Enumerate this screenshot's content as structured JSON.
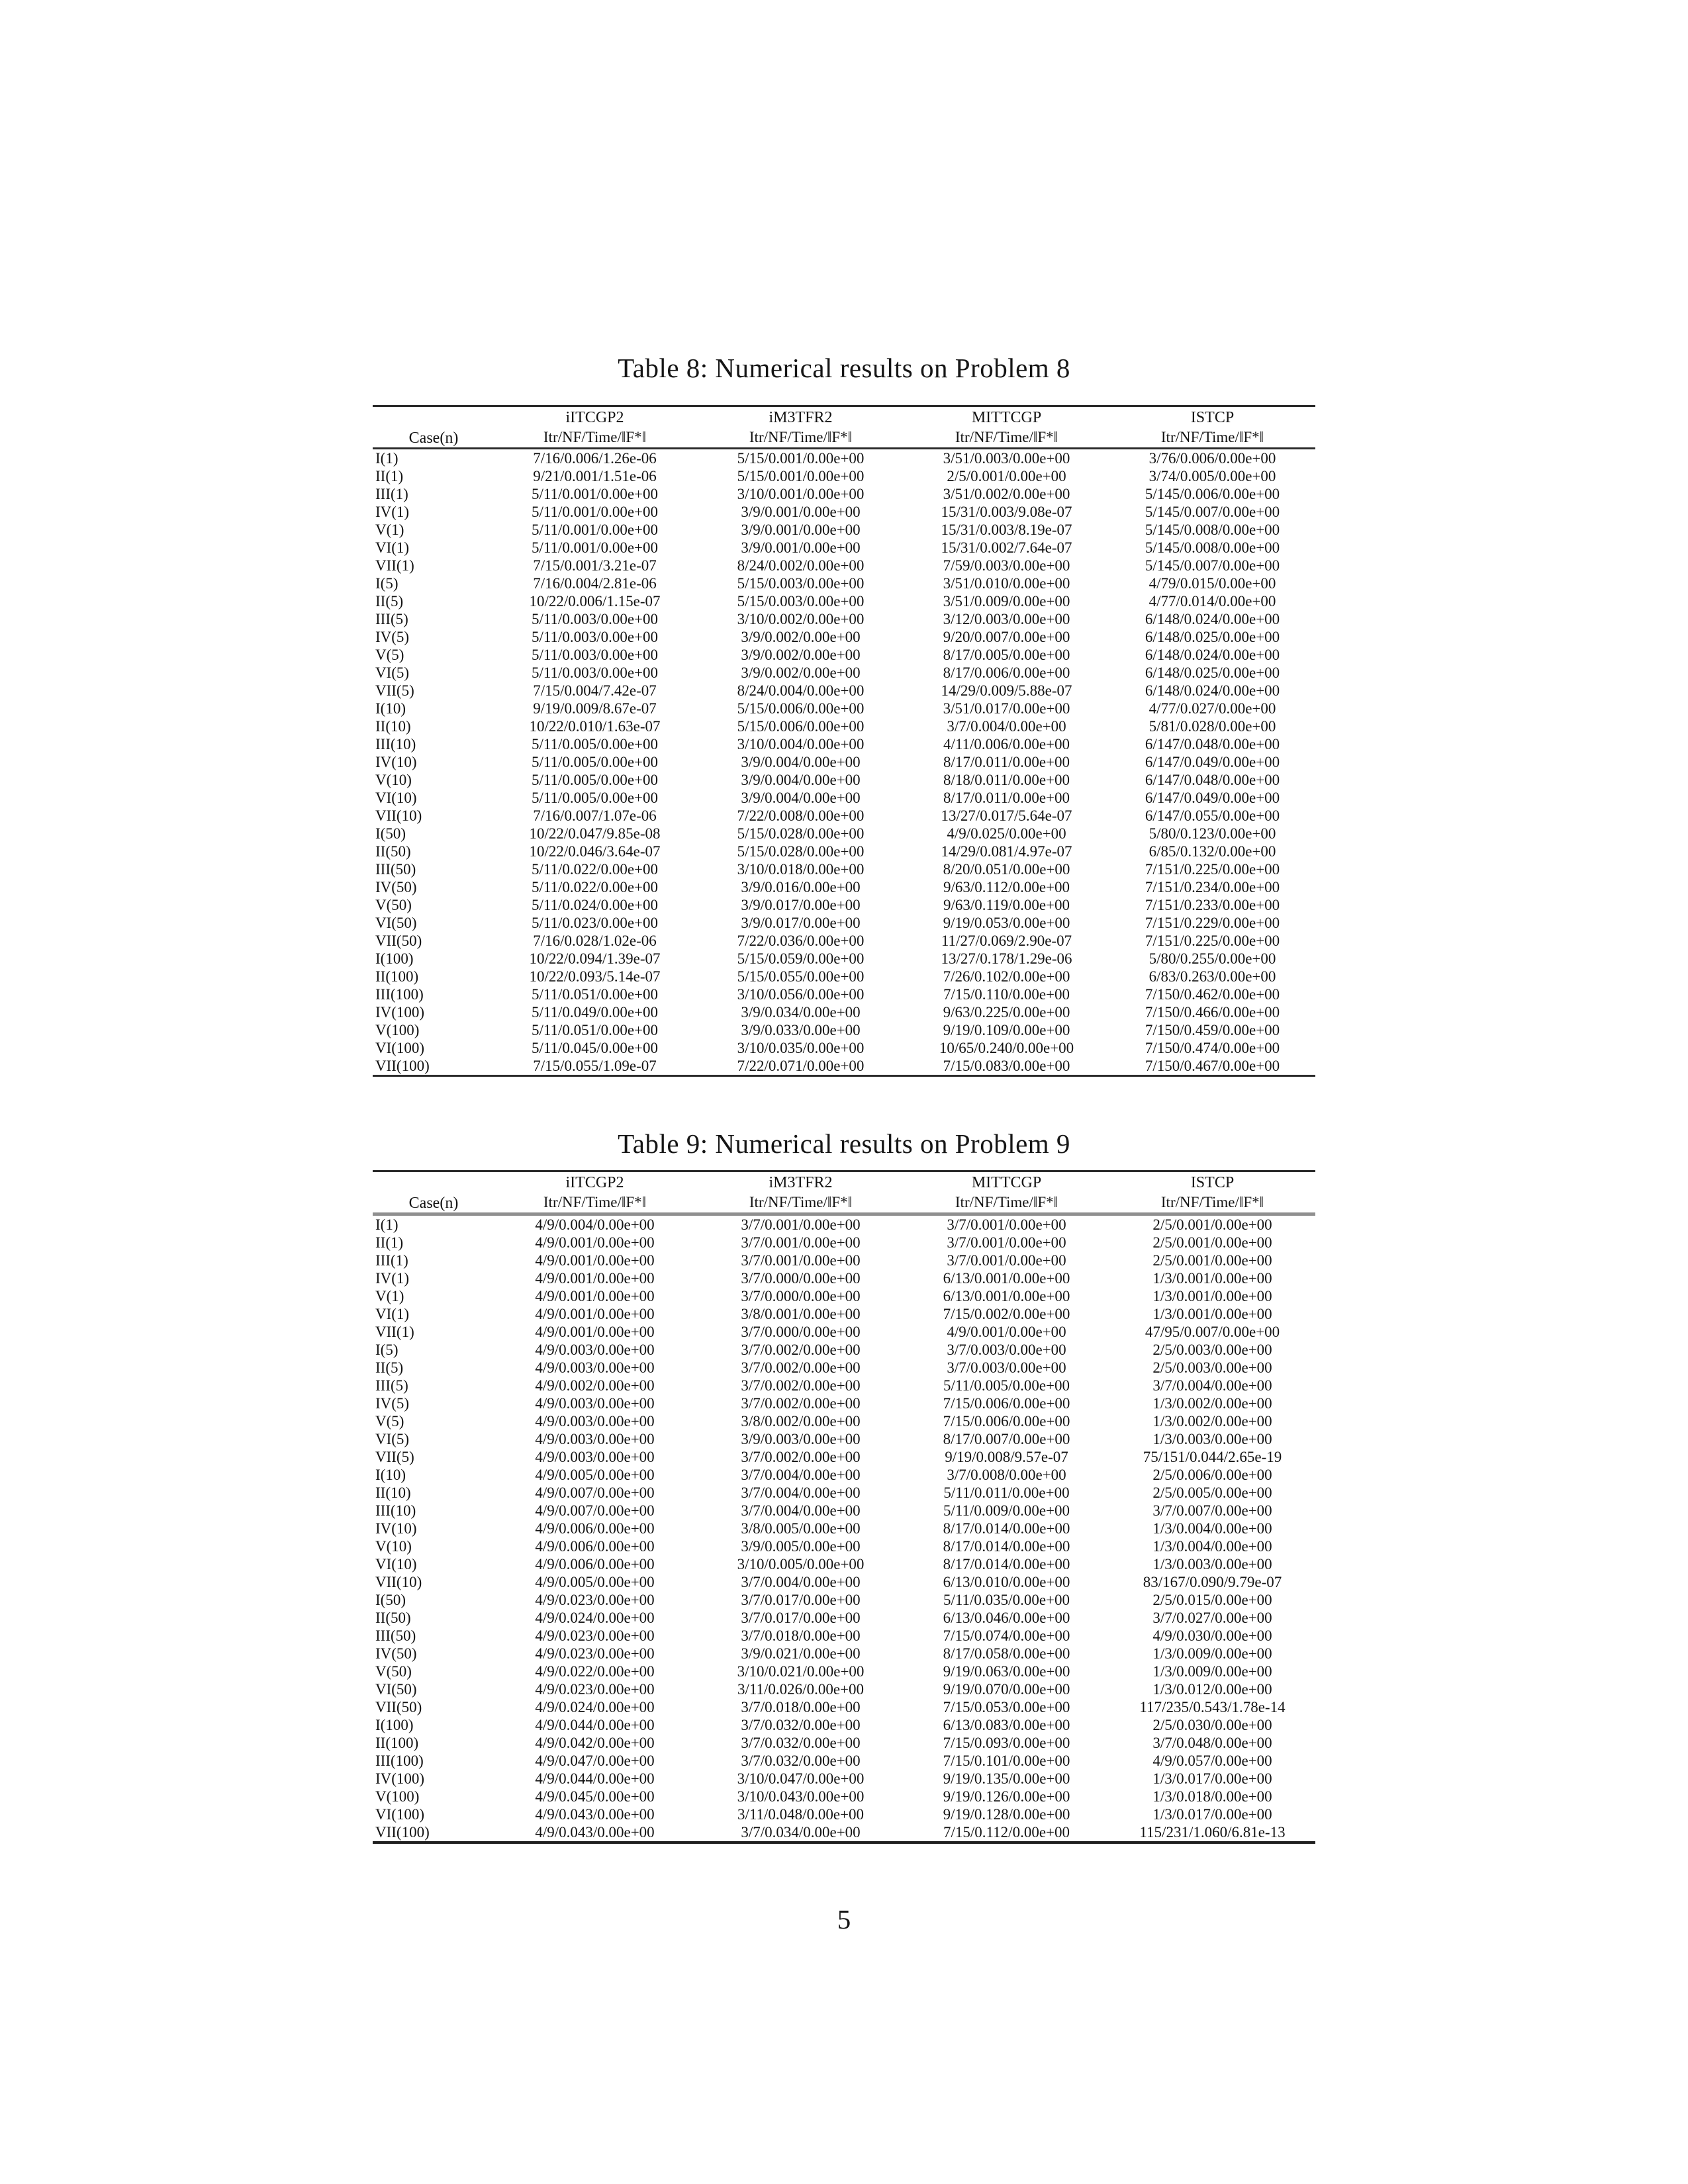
{
  "page": {
    "number": "5"
  },
  "tables": [
    {
      "title": "Table 8: Numerical results on Problem 8",
      "case_header": "Case(n)",
      "columns": [
        "iITCGP2",
        "iM3TFR2",
        "MITTCGP",
        "ISTCP"
      ],
      "metric_header": "Itr/NF/Time/‖F*‖",
      "rows": [
        [
          "I(1)",
          "7/16/0.006/1.26e-06",
          "5/15/0.001/0.00e+00",
          "3/51/0.003/0.00e+00",
          "3/76/0.006/0.00e+00"
        ],
        [
          "II(1)",
          "9/21/0.001/1.51e-06",
          "5/15/0.001/0.00e+00",
          "2/5/0.001/0.00e+00",
          "3/74/0.005/0.00e+00"
        ],
        [
          "III(1)",
          "5/11/0.001/0.00e+00",
          "3/10/0.001/0.00e+00",
          "3/51/0.002/0.00e+00",
          "5/145/0.006/0.00e+00"
        ],
        [
          "IV(1)",
          "5/11/0.001/0.00e+00",
          "3/9/0.001/0.00e+00",
          "15/31/0.003/9.08e-07",
          "5/145/0.007/0.00e+00"
        ],
        [
          "V(1)",
          "5/11/0.001/0.00e+00",
          "3/9/0.001/0.00e+00",
          "15/31/0.003/8.19e-07",
          "5/145/0.008/0.00e+00"
        ],
        [
          "VI(1)",
          "5/11/0.001/0.00e+00",
          "3/9/0.001/0.00e+00",
          "15/31/0.002/7.64e-07",
          "5/145/0.008/0.00e+00"
        ],
        [
          "VII(1)",
          "7/15/0.001/3.21e-07",
          "8/24/0.002/0.00e+00",
          "7/59/0.003/0.00e+00",
          "5/145/0.007/0.00e+00"
        ],
        [
          "I(5)",
          "7/16/0.004/2.81e-06",
          "5/15/0.003/0.00e+00",
          "3/51/0.010/0.00e+00",
          "4/79/0.015/0.00e+00"
        ],
        [
          "II(5)",
          "10/22/0.006/1.15e-07",
          "5/15/0.003/0.00e+00",
          "3/51/0.009/0.00e+00",
          "4/77/0.014/0.00e+00"
        ],
        [
          "III(5)",
          "5/11/0.003/0.00e+00",
          "3/10/0.002/0.00e+00",
          "3/12/0.003/0.00e+00",
          "6/148/0.024/0.00e+00"
        ],
        [
          "IV(5)",
          "5/11/0.003/0.00e+00",
          "3/9/0.002/0.00e+00",
          "9/20/0.007/0.00e+00",
          "6/148/0.025/0.00e+00"
        ],
        [
          "V(5)",
          "5/11/0.003/0.00e+00",
          "3/9/0.002/0.00e+00",
          "8/17/0.005/0.00e+00",
          "6/148/0.024/0.00e+00"
        ],
        [
          "VI(5)",
          "5/11/0.003/0.00e+00",
          "3/9/0.002/0.00e+00",
          "8/17/0.006/0.00e+00",
          "6/148/0.025/0.00e+00"
        ],
        [
          "VII(5)",
          "7/15/0.004/7.42e-07",
          "8/24/0.004/0.00e+00",
          "14/29/0.009/5.88e-07",
          "6/148/0.024/0.00e+00"
        ],
        [
          "I(10)",
          "9/19/0.009/8.67e-07",
          "5/15/0.006/0.00e+00",
          "3/51/0.017/0.00e+00",
          "4/77/0.027/0.00e+00"
        ],
        [
          "II(10)",
          "10/22/0.010/1.63e-07",
          "5/15/0.006/0.00e+00",
          "3/7/0.004/0.00e+00",
          "5/81/0.028/0.00e+00"
        ],
        [
          "III(10)",
          "5/11/0.005/0.00e+00",
          "3/10/0.004/0.00e+00",
          "4/11/0.006/0.00e+00",
          "6/147/0.048/0.00e+00"
        ],
        [
          "IV(10)",
          "5/11/0.005/0.00e+00",
          "3/9/0.004/0.00e+00",
          "8/17/0.011/0.00e+00",
          "6/147/0.049/0.00e+00"
        ],
        [
          "V(10)",
          "5/11/0.005/0.00e+00",
          "3/9/0.004/0.00e+00",
          "8/18/0.011/0.00e+00",
          "6/147/0.048/0.00e+00"
        ],
        [
          "VI(10)",
          "5/11/0.005/0.00e+00",
          "3/9/0.004/0.00e+00",
          "8/17/0.011/0.00e+00",
          "6/147/0.049/0.00e+00"
        ],
        [
          "VII(10)",
          "7/16/0.007/1.07e-06",
          "7/22/0.008/0.00e+00",
          "13/27/0.017/5.64e-07",
          "6/147/0.055/0.00e+00"
        ],
        [
          "I(50)",
          "10/22/0.047/9.85e-08",
          "5/15/0.028/0.00e+00",
          "4/9/0.025/0.00e+00",
          "5/80/0.123/0.00e+00"
        ],
        [
          "II(50)",
          "10/22/0.046/3.64e-07",
          "5/15/0.028/0.00e+00",
          "14/29/0.081/4.97e-07",
          "6/85/0.132/0.00e+00"
        ],
        [
          "III(50)",
          "5/11/0.022/0.00e+00",
          "3/10/0.018/0.00e+00",
          "8/20/0.051/0.00e+00",
          "7/151/0.225/0.00e+00"
        ],
        [
          "IV(50)",
          "5/11/0.022/0.00e+00",
          "3/9/0.016/0.00e+00",
          "9/63/0.112/0.00e+00",
          "7/151/0.234/0.00e+00"
        ],
        [
          "V(50)",
          "5/11/0.024/0.00e+00",
          "3/9/0.017/0.00e+00",
          "9/63/0.119/0.00e+00",
          "7/151/0.233/0.00e+00"
        ],
        [
          "VI(50)",
          "5/11/0.023/0.00e+00",
          "3/9/0.017/0.00e+00",
          "9/19/0.053/0.00e+00",
          "7/151/0.229/0.00e+00"
        ],
        [
          "VII(50)",
          "7/16/0.028/1.02e-06",
          "7/22/0.036/0.00e+00",
          "11/27/0.069/2.90e-07",
          "7/151/0.225/0.00e+00"
        ],
        [
          "I(100)",
          "10/22/0.094/1.39e-07",
          "5/15/0.059/0.00e+00",
          "13/27/0.178/1.29e-06",
          "5/80/0.255/0.00e+00"
        ],
        [
          "II(100)",
          "10/22/0.093/5.14e-07",
          "5/15/0.055/0.00e+00",
          "7/26/0.102/0.00e+00",
          "6/83/0.263/0.00e+00"
        ],
        [
          "III(100)",
          "5/11/0.051/0.00e+00",
          "3/10/0.056/0.00e+00",
          "7/15/0.110/0.00e+00",
          "7/150/0.462/0.00e+00"
        ],
        [
          "IV(100)",
          "5/11/0.049/0.00e+00",
          "3/9/0.034/0.00e+00",
          "9/63/0.225/0.00e+00",
          "7/150/0.466/0.00e+00"
        ],
        [
          "V(100)",
          "5/11/0.051/0.00e+00",
          "3/9/0.033/0.00e+00",
          "9/19/0.109/0.00e+00",
          "7/150/0.459/0.00e+00"
        ],
        [
          "VI(100)",
          "5/11/0.045/0.00e+00",
          "3/10/0.035/0.00e+00",
          "10/65/0.240/0.00e+00",
          "7/150/0.474/0.00e+00"
        ],
        [
          "VII(100)",
          "7/15/0.055/1.09e-07",
          "7/22/0.071/0.00e+00",
          "7/15/0.083/0.00e+00",
          "7/150/0.467/0.00e+00"
        ]
      ]
    },
    {
      "title": "Table 9: Numerical results on Problem 9",
      "case_header": "Case(n)",
      "columns": [
        "iITCGP2",
        "iM3TFR2",
        "MITTCGP",
        "ISTCP"
      ],
      "metric_header": "Itr/NF/Time/‖F*‖",
      "rows": [
        [
          "I(1)",
          "4/9/0.004/0.00e+00",
          "3/7/0.001/0.00e+00",
          "3/7/0.001/0.00e+00",
          "2/5/0.001/0.00e+00"
        ],
        [
          "II(1)",
          "4/9/0.001/0.00e+00",
          "3/7/0.001/0.00e+00",
          "3/7/0.001/0.00e+00",
          "2/5/0.001/0.00e+00"
        ],
        [
          "III(1)",
          "4/9/0.001/0.00e+00",
          "3/7/0.001/0.00e+00",
          "3/7/0.001/0.00e+00",
          "2/5/0.001/0.00e+00"
        ],
        [
          "IV(1)",
          "4/9/0.001/0.00e+00",
          "3/7/0.000/0.00e+00",
          "6/13/0.001/0.00e+00",
          "1/3/0.001/0.00e+00"
        ],
        [
          "V(1)",
          "4/9/0.001/0.00e+00",
          "3/7/0.000/0.00e+00",
          "6/13/0.001/0.00e+00",
          "1/3/0.001/0.00e+00"
        ],
        [
          "VI(1)",
          "4/9/0.001/0.00e+00",
          "3/8/0.001/0.00e+00",
          "7/15/0.002/0.00e+00",
          "1/3/0.001/0.00e+00"
        ],
        [
          "VII(1)",
          "4/9/0.001/0.00e+00",
          "3/7/0.000/0.00e+00",
          "4/9/0.001/0.00e+00",
          "47/95/0.007/0.00e+00"
        ],
        [
          "I(5)",
          "4/9/0.003/0.00e+00",
          "3/7/0.002/0.00e+00",
          "3/7/0.003/0.00e+00",
          "2/5/0.003/0.00e+00"
        ],
        [
          "II(5)",
          "4/9/0.003/0.00e+00",
          "3/7/0.002/0.00e+00",
          "3/7/0.003/0.00e+00",
          "2/5/0.003/0.00e+00"
        ],
        [
          "III(5)",
          "4/9/0.002/0.00e+00",
          "3/7/0.002/0.00e+00",
          "5/11/0.005/0.00e+00",
          "3/7/0.004/0.00e+00"
        ],
        [
          "IV(5)",
          "4/9/0.003/0.00e+00",
          "3/7/0.002/0.00e+00",
          "7/15/0.006/0.00e+00",
          "1/3/0.002/0.00e+00"
        ],
        [
          "V(5)",
          "4/9/0.003/0.00e+00",
          "3/8/0.002/0.00e+00",
          "7/15/0.006/0.00e+00",
          "1/3/0.002/0.00e+00"
        ],
        [
          "VI(5)",
          "4/9/0.003/0.00e+00",
          "3/9/0.003/0.00e+00",
          "8/17/0.007/0.00e+00",
          "1/3/0.003/0.00e+00"
        ],
        [
          "VII(5)",
          "4/9/0.003/0.00e+00",
          "3/7/0.002/0.00e+00",
          "9/19/0.008/9.57e-07",
          "75/151/0.044/2.65e-19"
        ],
        [
          "I(10)",
          "4/9/0.005/0.00e+00",
          "3/7/0.004/0.00e+00",
          "3/7/0.008/0.00e+00",
          "2/5/0.006/0.00e+00"
        ],
        [
          "II(10)",
          "4/9/0.007/0.00e+00",
          "3/7/0.004/0.00e+00",
          "5/11/0.011/0.00e+00",
          "2/5/0.005/0.00e+00"
        ],
        [
          "III(10)",
          "4/9/0.007/0.00e+00",
          "3/7/0.004/0.00e+00",
          "5/11/0.009/0.00e+00",
          "3/7/0.007/0.00e+00"
        ],
        [
          "IV(10)",
          "4/9/0.006/0.00e+00",
          "3/8/0.005/0.00e+00",
          "8/17/0.014/0.00e+00",
          "1/3/0.004/0.00e+00"
        ],
        [
          "V(10)",
          "4/9/0.006/0.00e+00",
          "3/9/0.005/0.00e+00",
          "8/17/0.014/0.00e+00",
          "1/3/0.004/0.00e+00"
        ],
        [
          "VI(10)",
          "4/9/0.006/0.00e+00",
          "3/10/0.005/0.00e+00",
          "8/17/0.014/0.00e+00",
          "1/3/0.003/0.00e+00"
        ],
        [
          "VII(10)",
          "4/9/0.005/0.00e+00",
          "3/7/0.004/0.00e+00",
          "6/13/0.010/0.00e+00",
          "83/167/0.090/9.79e-07"
        ],
        [
          "I(50)",
          "4/9/0.023/0.00e+00",
          "3/7/0.017/0.00e+00",
          "5/11/0.035/0.00e+00",
          "2/5/0.015/0.00e+00"
        ],
        [
          "II(50)",
          "4/9/0.024/0.00e+00",
          "3/7/0.017/0.00e+00",
          "6/13/0.046/0.00e+00",
          "3/7/0.027/0.00e+00"
        ],
        [
          "III(50)",
          "4/9/0.023/0.00e+00",
          "3/7/0.018/0.00e+00",
          "7/15/0.074/0.00e+00",
          "4/9/0.030/0.00e+00"
        ],
        [
          "IV(50)",
          "4/9/0.023/0.00e+00",
          "3/9/0.021/0.00e+00",
          "8/17/0.058/0.00e+00",
          "1/3/0.009/0.00e+00"
        ],
        [
          "V(50)",
          "4/9/0.022/0.00e+00",
          "3/10/0.021/0.00e+00",
          "9/19/0.063/0.00e+00",
          "1/3/0.009/0.00e+00"
        ],
        [
          "VI(50)",
          "4/9/0.023/0.00e+00",
          "3/11/0.026/0.00e+00",
          "9/19/0.070/0.00e+00",
          "1/3/0.012/0.00e+00"
        ],
        [
          "VII(50)",
          "4/9/0.024/0.00e+00",
          "3/7/0.018/0.00e+00",
          "7/15/0.053/0.00e+00",
          "117/235/0.543/1.78e-14"
        ],
        [
          "I(100)",
          "4/9/0.044/0.00e+00",
          "3/7/0.032/0.00e+00",
          "6/13/0.083/0.00e+00",
          "2/5/0.030/0.00e+00"
        ],
        [
          "II(100)",
          "4/9/0.042/0.00e+00",
          "3/7/0.032/0.00e+00",
          "7/15/0.093/0.00e+00",
          "3/7/0.048/0.00e+00"
        ],
        [
          "III(100)",
          "4/9/0.047/0.00e+00",
          "3/7/0.032/0.00e+00",
          "7/15/0.101/0.00e+00",
          "4/9/0.057/0.00e+00"
        ],
        [
          "IV(100)",
          "4/9/0.044/0.00e+00",
          "3/10/0.047/0.00e+00",
          "9/19/0.135/0.00e+00",
          "1/3/0.017/0.00e+00"
        ],
        [
          "V(100)",
          "4/9/0.045/0.00e+00",
          "3/10/0.043/0.00e+00",
          "9/19/0.126/0.00e+00",
          "1/3/0.018/0.00e+00"
        ],
        [
          "VI(100)",
          "4/9/0.043/0.00e+00",
          "3/11/0.048/0.00e+00",
          "9/19/0.128/0.00e+00",
          "1/3/0.017/0.00e+00"
        ],
        [
          "VII(100)",
          "4/9/0.043/0.00e+00",
          "3/7/0.034/0.00e+00",
          "7/15/0.112/0.00e+00",
          "115/231/1.060/6.81e-13"
        ]
      ]
    }
  ]
}
